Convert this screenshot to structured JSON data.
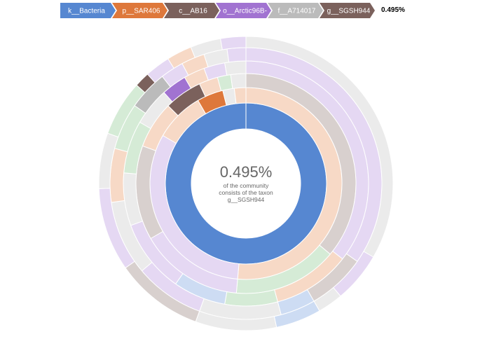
{
  "breadcrumb": {
    "items": [
      {
        "label": "k__Bacteria",
        "color": "#5687d1"
      },
      {
        "label": "p__SAR406",
        "color": "#de783b"
      },
      {
        "label": "c__AB16",
        "color": "#7b615c"
      },
      {
        "label": "o__Arctic96B-",
        "color": "#a173d1"
      },
      {
        "label": "f__A714017",
        "color": "#bbbbbb"
      },
      {
        "label": "g__SGSH944",
        "color": "#7b615c"
      }
    ],
    "percentage": "0.495%"
  },
  "center": {
    "percentage": "0.495%",
    "caption_line1": "of the community",
    "caption_line2": "consists of the taxon",
    "taxon": "g__SGSH944"
  },
  "colors": {
    "kingdom": "#5687d1",
    "phylum": "#de783b",
    "class": "#7b615c",
    "order": "#a173d1",
    "family": "#bbbbbb",
    "genus": "#7b615c",
    "pale_orange": "#f7d9c6",
    "pale_purple": "#e5d8f3",
    "pale_brown": "#d8d0ce",
    "pale_gray": "#ebebeb",
    "pale_green": "#d5ebd6",
    "pale_blue": "#cddcf3"
  }
}
